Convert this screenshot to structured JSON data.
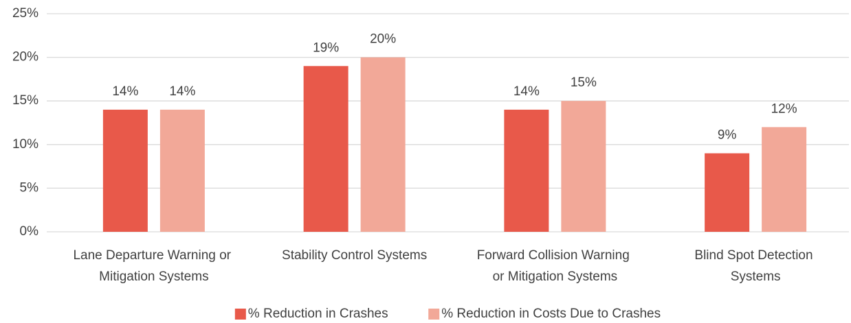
{
  "chart_data": {
    "type": "bar",
    "categories": [
      "Lane Departure Warning or Mitigation Systems",
      "Stability Control Systems",
      "Forward Collision Warning or Mitigation Systems",
      "Blind Spot Detection Systems"
    ],
    "series": [
      {
        "name": "% Reduction in Crashes",
        "color": "#e8594a",
        "values": [
          14,
          19,
          14,
          9
        ],
        "value_labels": [
          "14%",
          "19%",
          "14%",
          "9%"
        ]
      },
      {
        "name": "% Reduction in Costs Due to Crashes",
        "color": "#f2a898",
        "values": [
          14,
          20,
          15,
          12
        ],
        "value_labels": [
          "14%",
          "20%",
          "15%",
          "12%"
        ]
      }
    ],
    "ylim": [
      0,
      25
    ],
    "yticks": [
      {
        "value": 0,
        "label": "0%"
      },
      {
        "value": 5,
        "label": "5%"
      },
      {
        "value": 10,
        "label": "10%"
      },
      {
        "value": 15,
        "label": "15%"
      },
      {
        "value": 20,
        "label": "20%"
      },
      {
        "value": 25,
        "label": "25%"
      }
    ],
    "grid": true,
    "legend": "bottom"
  }
}
